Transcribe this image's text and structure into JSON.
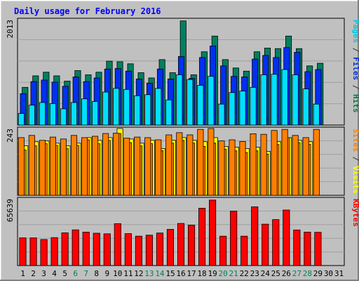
{
  "chart_data": {
    "type": "bar",
    "title": "Daily usage for February 2016",
    "categories": [
      "1",
      "2",
      "3",
      "4",
      "5",
      "6",
      "7",
      "8",
      "9",
      "10",
      "11",
      "12",
      "13",
      "14",
      "15",
      "16",
      "17",
      "18",
      "19",
      "20",
      "21",
      "22",
      "23",
      "24",
      "25",
      "26",
      "27",
      "28",
      "29",
      "30",
      "31"
    ],
    "weekend_days": [
      6,
      7,
      13,
      14,
      20,
      21,
      27,
      28
    ],
    "grid": true,
    "panels": [
      {
        "id": "hits",
        "ymax_label": "2013",
        "ymax": 2013,
        "side_labels": [
          {
            "text": "Pages",
            "color": "#00c8e0"
          },
          {
            "text": " / ",
            "color": "#333333"
          },
          {
            "text": "Files",
            "color": "#0030e0"
          },
          {
            "text": " / ",
            "color": "#333333"
          },
          {
            "text": "Hits",
            "color": "#008040"
          }
        ],
        "series": [
          {
            "name": "Hits",
            "color": "#008060",
            "values": [
              720,
              940,
              1010,
              940,
              840,
              1040,
              960,
              1010,
              1220,
              1210,
              1170,
              1000,
              900,
              1250,
              1000,
              1990,
              960,
              1400,
              1700,
              1250,
              1090,
              1030,
              1400,
              1470,
              1460,
              1700,
              1460,
              1130,
              1180,
              0,
              0
            ]
          },
          {
            "name": "Files",
            "color": "#0030f0",
            "values": [
              600,
              830,
              860,
              820,
              740,
              920,
              830,
              900,
              1070,
              1080,
              1030,
              880,
              800,
              1070,
              880,
              1310,
              890,
              1290,
              1510,
              1130,
              930,
              920,
              1260,
              1330,
              1290,
              1480,
              1390,
              1020,
              1060,
              0,
              0
            ]
          },
          {
            "name": "Pages",
            "color": "#00e0ff",
            "values": [
              220,
              380,
              430,
              410,
              310,
              430,
              500,
              450,
              630,
              700,
              680,
              560,
              580,
              700,
              480,
              960,
              870,
              760,
              930,
              400,
              620,
              650,
              720,
              960,
              970,
              1060,
              960,
              690,
              400,
              0,
              0
            ]
          }
        ]
      },
      {
        "id": "visits",
        "ymax_label": "243",
        "ymax": 243,
        "side_labels": [
          {
            "text": "Sites",
            "color": "#ff8000"
          },
          {
            "text": " / ",
            "color": "#333333"
          },
          {
            "text": "Visits",
            "color": "#ffff00"
          }
        ],
        "series": [
          {
            "name": "Visits",
            "color": "#ffff00",
            "values": [
              180,
              195,
              198,
              190,
              180,
              190,
              210,
              200,
              210,
              245,
              205,
              190,
              200,
              170,
              200,
              210,
              200,
              195,
              210,
              178,
              175,
              170,
              175,
              160,
              195,
              210,
              200,
              195,
              0,
              0,
              0
            ]
          },
          {
            "name": "Sites",
            "color": "#ff8000",
            "values": [
              165,
              180,
              188,
              182,
              170,
              182,
              202,
              188,
              200,
              225,
              192,
              180,
              188,
              163,
              190,
              200,
              190,
              178,
              190,
              168,
              162,
              156,
              162,
              150,
              185,
              210,
              192,
              186,
              0,
              0,
              0
            ]
          },
          {
            "name": "Sites",
            "color": "#ff8000",
            "values": [
              210,
              218,
              200,
              212,
              205,
              218,
              210,
              215,
              225,
              226,
              208,
              212,
              210,
              202,
              220,
              228,
              220,
              240,
              245,
              198,
              202,
              196,
              224,
              222,
              236,
              240,
              218,
              210,
              240,
              0,
              0
            ]
          }
        ]
      },
      {
        "id": "kbytes",
        "ymax_label": "65639",
        "ymax": 65639,
        "side_labels": [
          {
            "text": "KBytes",
            "color": "#ff0000"
          }
        ],
        "series": [
          {
            "name": "KBytes",
            "color": "#ff0000",
            "values": [
              27200,
              27200,
              25600,
              27500,
              32200,
              35100,
              32900,
              31800,
              31200,
              41200,
              31400,
              28900,
              29900,
              32000,
              35600,
              41400,
              39800,
              56400,
              64400,
              28900,
              53600,
              28900,
              57800,
              40700,
              45200,
              54600,
              35000,
              32900,
              32700,
              0,
              0
            ]
          }
        ]
      }
    ]
  }
}
